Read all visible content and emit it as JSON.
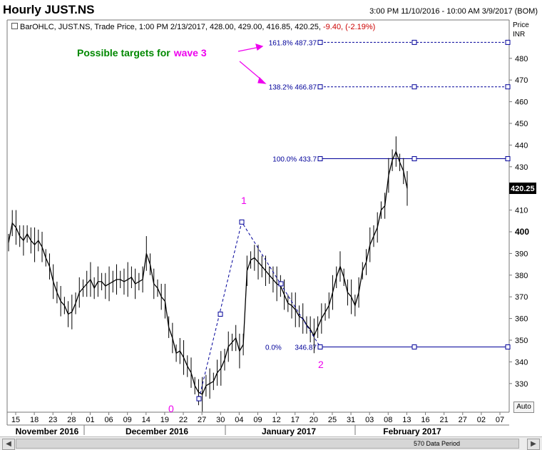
{
  "header": {
    "title": "Hourly JUST.NS",
    "range": "3:00 PM 11/10/2016 - 10:00 AM 3/9/2017 (BOM)"
  },
  "info_line": {
    "prefix": "BarOHLC, JUST.NS, Trade Price, 1:00 PM 2/13/2017, 428.00, 429.00, 416.85, 420.25, ",
    "change": "-9.40, (-2.19%)",
    "change_color": "#cc0000"
  },
  "axis": {
    "price_label": "Price",
    "currency_label": "INR",
    "auto_label": "Auto",
    "current_price": "420.25"
  },
  "annotations": {
    "targets_text_green": "Possible targets for",
    "targets_text_magenta": "wave 3",
    "green_color": "#008800",
    "magenta_color": "#ee00ee",
    "wave_labels": [
      "0",
      "1",
      "2"
    ]
  },
  "fib_levels": [
    {
      "label": "161.8% 487.37",
      "price": 487.37
    },
    {
      "label": "138.2% 466.87",
      "price": 466.87
    },
    {
      "label": "100.0% 433.7",
      "price": 433.7
    },
    {
      "label": "0.0%",
      "label2": "346.87",
      "price": 346.87
    }
  ],
  "months": [
    "November 2016",
    "December 2016",
    "January 2017",
    "February 2017"
  ],
  "scrollbar": {
    "period_label": "570 Data Period"
  },
  "chart_data": {
    "type": "line",
    "title": "Hourly JUST.NS",
    "ylabel": "Price INR",
    "ylim": [
      320,
      490
    ],
    "y_ticks": [
      330,
      340,
      350,
      360,
      370,
      380,
      390,
      400,
      410,
      420,
      430,
      440,
      450,
      460,
      470,
      480
    ],
    "x_ticks": [
      "15",
      "18",
      "23",
      "28",
      "01",
      "06",
      "09",
      "14",
      "19",
      "22",
      "27",
      "30",
      "04",
      "09",
      "12",
      "17",
      "20",
      "25",
      "31",
      "03",
      "08",
      "13",
      "16",
      "21",
      "27",
      "02",
      "07"
    ],
    "series": [
      {
        "color": "#000000",
        "values": [
          395,
          404,
          402,
          398,
          396,
          399,
          396,
          394,
          396,
          393,
          388,
          384,
          377,
          372,
          368,
          366,
          362,
          363,
          367,
          372,
          374,
          376,
          378,
          374,
          377,
          377,
          375,
          376,
          377,
          378,
          378,
          377,
          378,
          379,
          376,
          377,
          378,
          390,
          385,
          376,
          374,
          370,
          368,
          356,
          351,
          344,
          345,
          342,
          338,
          335,
          329,
          326,
          325,
          329,
          330,
          331,
          335,
          337,
          341,
          347,
          349,
          351,
          345,
          348,
          382,
          387,
          388,
          386,
          384,
          382,
          380,
          378,
          376,
          375,
          371,
          367,
          366,
          364,
          361,
          360,
          357,
          355,
          352,
          356,
          360,
          363,
          366,
          372,
          379,
          384,
          379,
          372,
          370,
          366,
          372,
          382,
          386,
          394,
          398,
          402,
          410,
          412,
          426,
          433,
          437,
          432,
          428,
          420
        ]
      }
    ],
    "fib_levels": [
      {
        "pct": "161.8%",
        "price": 487.37
      },
      {
        "pct": "138.2%",
        "price": 466.87
      },
      {
        "pct": "100.0%",
        "price": 433.7
      },
      {
        "pct": "0.0%",
        "price": 346.87
      }
    ],
    "grid": false
  }
}
